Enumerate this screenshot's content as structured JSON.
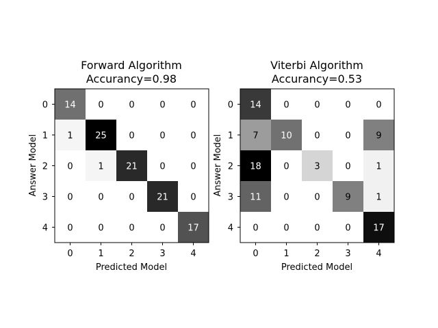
{
  "chart_data": [
    {
      "type": "heatmap",
      "title_line1": "Forward Algorithm",
      "title_line2": "Accurancy=0.98",
      "xlabel": "Predicted Model",
      "ylabel": "Answer Model",
      "x_ticks": [
        "0",
        "1",
        "2",
        "3",
        "4"
      ],
      "y_ticks": [
        "0",
        "1",
        "2",
        "3",
        "4"
      ],
      "colormap": "gray_r",
      "matrix": [
        [
          14,
          0,
          0,
          0,
          0
        ],
        [
          1,
          25,
          0,
          0,
          0
        ],
        [
          0,
          1,
          21,
          0,
          0
        ],
        [
          0,
          0,
          0,
          21,
          0
        ],
        [
          0,
          0,
          0,
          0,
          17
        ]
      ]
    },
    {
      "type": "heatmap",
      "title_line1": "Viterbi Algorithm",
      "title_line2": "Accurancy=0.53",
      "xlabel": "Predicted Model",
      "ylabel": "Answer Model",
      "x_ticks": [
        "0",
        "1",
        "2",
        "3",
        "4"
      ],
      "y_ticks": [
        "0",
        "1",
        "2",
        "3",
        "4"
      ],
      "colormap": "gray_r",
      "matrix": [
        [
          14,
          0,
          0,
          0,
          0
        ],
        [
          7,
          10,
          0,
          0,
          9
        ],
        [
          18,
          0,
          3,
          0,
          1
        ],
        [
          11,
          0,
          0,
          9,
          1
        ],
        [
          0,
          0,
          0,
          0,
          17
        ]
      ]
    }
  ]
}
